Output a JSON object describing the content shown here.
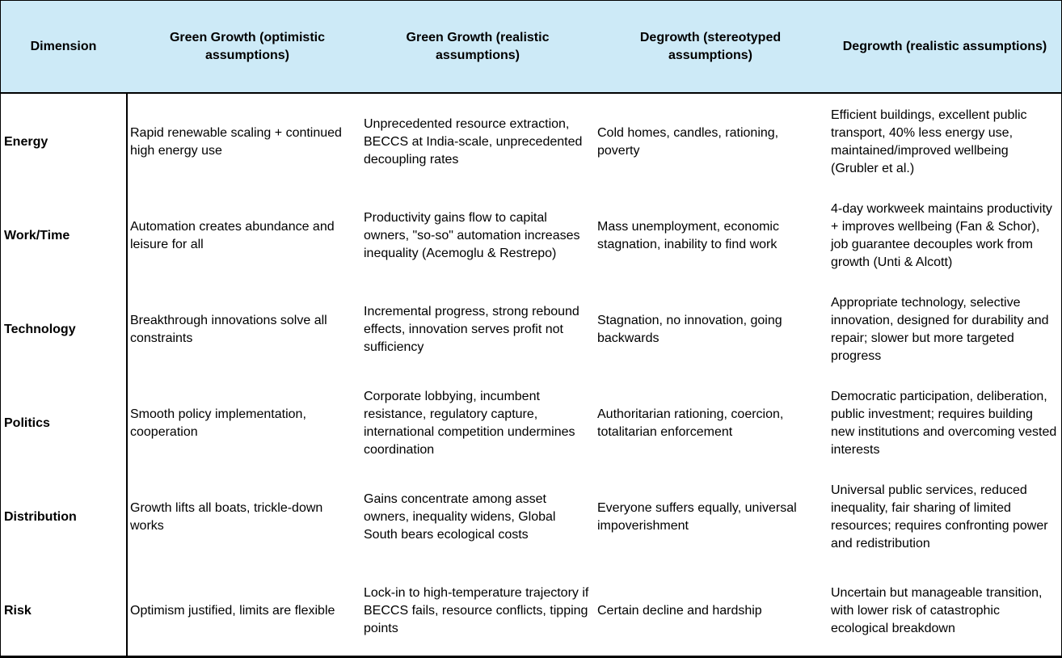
{
  "header": {
    "dimension": "Dimension",
    "col1": "Green Growth (optimistic assumptions)",
    "col2": "Green Growth (realistic assumptions)",
    "col3": "Degrowth (stereotyped assumptions)",
    "col4": "Degrowth (realistic assumptions)"
  },
  "rows": [
    {
      "dimension": "Energy",
      "gg_optimistic": "Rapid renewable scaling + continued high energy use",
      "gg_realistic": "Unprecedented resource extraction, BECCS at India-scale, unprecedented decoupling rates",
      "dg_stereotyped": "Cold homes, candles, rationing, poverty",
      "dg_realistic": "Efficient buildings, excellent public transport, 40% less energy use, maintained/improved wellbeing (Grubler et al.)"
    },
    {
      "dimension": "Work/Time",
      "gg_optimistic": "Automation creates abundance and leisure for all",
      "gg_realistic": "Productivity gains flow to capital owners, \"so-so\" automation increases inequality (Acemoglu & Restrepo)",
      "dg_stereotyped": "Mass unemployment, economic stagnation, inability to find work",
      "dg_realistic": "4-day workweek maintains productivity + improves wellbeing (Fan & Schor), job guarantee decouples work from growth (Unti & Alcott)"
    },
    {
      "dimension": "Technology",
      "gg_optimistic": "Breakthrough innovations solve all constraints",
      "gg_realistic": "Incremental progress, strong rebound effects, innovation serves profit not sufficiency",
      "dg_stereotyped": "Stagnation, no innovation, going backwards",
      "dg_realistic": "Appropriate technology, selective innovation, designed for durability and repair; slower but more targeted progress"
    },
    {
      "dimension": "Politics",
      "gg_optimistic": "Smooth policy implementation, cooperation",
      "gg_realistic": "Corporate lobbying, incumbent resistance, regulatory capture, international competition undermines coordination",
      "dg_stereotyped": "Authoritarian rationing, coercion, totalitarian enforcement",
      "dg_realistic": "Democratic participation, deliberation, public investment; requires building new institutions and overcoming vested interests"
    },
    {
      "dimension": "Distribution",
      "gg_optimistic": "Growth lifts all boats, trickle-down works",
      "gg_realistic": "Gains concentrate among asset owners, inequality widens, Global South bears ecological costs",
      "dg_stereotyped": "Everyone suffers equally, universal impoverishment",
      "dg_realistic": "Universal public services, reduced inequality, fair sharing of limited resources; requires confronting power and redistribution"
    },
    {
      "dimension": "Risk",
      "gg_optimistic": "Optimism justified, limits are flexible",
      "gg_realistic": "Lock-in to high-temperature trajectory if BECCS fails, resource conflicts, tipping points",
      "dg_stereotyped": "Certain decline and hardship",
      "dg_realistic": "Uncertain but manageable transition, with lower risk of catastrophic ecological breakdown"
    }
  ]
}
